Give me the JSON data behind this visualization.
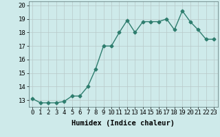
{
  "x": [
    0,
    1,
    2,
    3,
    4,
    5,
    6,
    7,
    8,
    9,
    10,
    11,
    12,
    13,
    14,
    15,
    16,
    17,
    18,
    19,
    20,
    21,
    22,
    23
  ],
  "y": [
    13.1,
    12.8,
    12.8,
    12.8,
    12.9,
    13.3,
    13.3,
    14.0,
    15.3,
    17.0,
    17.0,
    18.0,
    18.9,
    18.0,
    18.8,
    18.8,
    18.8,
    19.0,
    18.2,
    19.6,
    18.8,
    18.2,
    17.5,
    17.5
  ],
  "line_color": "#2e7d6e",
  "marker": "D",
  "marker_size": 2.5,
  "bg_color": "#ceeaea",
  "grid_color": "#b8c8c8",
  "xlabel": "Humidex (Indice chaleur)",
  "ylim": [
    12.5,
    20.3
  ],
  "xlim": [
    -0.5,
    23.5
  ],
  "yticks": [
    13,
    14,
    15,
    16,
    17,
    18,
    19,
    20
  ],
  "xticks": [
    0,
    1,
    2,
    3,
    4,
    5,
    6,
    7,
    8,
    9,
    10,
    11,
    12,
    13,
    14,
    15,
    16,
    17,
    18,
    19,
    20,
    21,
    22,
    23
  ],
  "xlabel_fontsize": 7.5,
  "tick_fontsize": 6.5,
  "line_width": 1.0
}
